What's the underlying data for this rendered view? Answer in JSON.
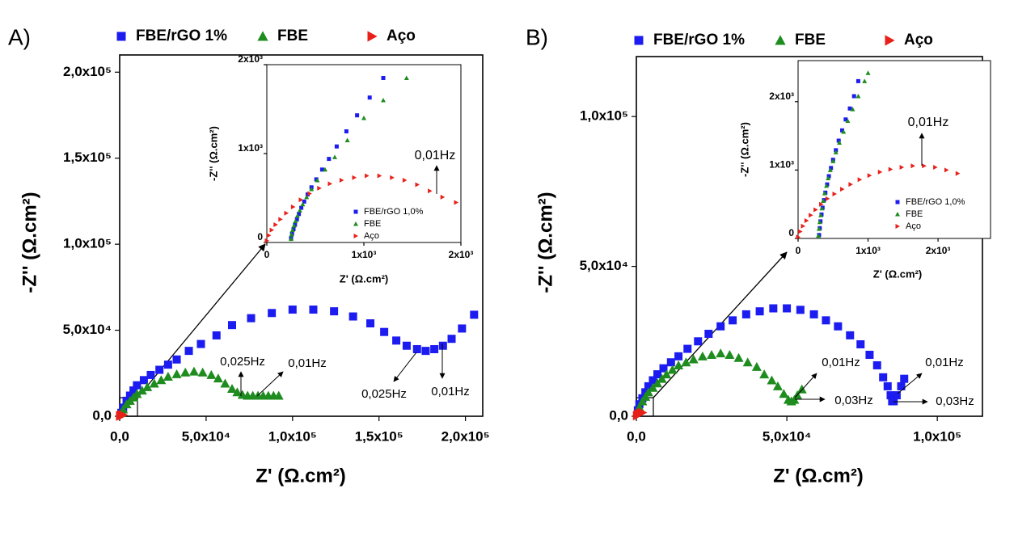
{
  "chart_data": [
    {
      "type": "scatter",
      "panel_label": "A)",
      "xlabel": "Z' (Ω.cm²)",
      "ylabel": "-Z'' (Ω.cm²)",
      "xlim": [
        0,
        210000
      ],
      "ylim": [
        0,
        210000
      ],
      "xticks": [
        {
          "value": 0,
          "label": "0,0"
        },
        {
          "value": 50000,
          "label": "5,0x10⁴"
        },
        {
          "value": 100000,
          "label": "1,0x10⁵"
        },
        {
          "value": 150000,
          "label": "1,5x10⁵"
        },
        {
          "value": 200000,
          "label": "2,0x10⁵"
        }
      ],
      "yticks": [
        {
          "value": 0,
          "label": "0,0"
        },
        {
          "value": 50000,
          "label": "5,0x10⁴"
        },
        {
          "value": 100000,
          "label": "1,0x10⁵"
        },
        {
          "value": 150000,
          "label": "1,5x10⁵"
        },
        {
          "value": 200000,
          "label": "2,0x10⁵"
        }
      ],
      "legend": "top",
      "annotations": [
        "0,025Hz",
        "0,01Hz",
        "0,025Hz",
        "0,01Hz"
      ],
      "series": [
        {
          "name": "FBE/rGO 1%",
          "color": "#1c1cf0",
          "marker": "square",
          "x": [
            1000,
            2000,
            4000,
            6000,
            8000,
            10000,
            14000,
            18000,
            23000,
            28000,
            33000,
            40000,
            47000,
            56000,
            65000,
            76000,
            88000,
            100000,
            112000,
            124000,
            135000,
            145000,
            153000,
            160000,
            166000,
            172000,
            177000,
            182000,
            187000,
            192000,
            198000,
            205000
          ],
          "values": [
            2000,
            5000,
            9000,
            12000,
            15000,
            18000,
            21000,
            24000,
            27000,
            30000,
            33000,
            38000,
            42000,
            47000,
            53000,
            57000,
            60000,
            62000,
            62000,
            61000,
            58000,
            54000,
            49000,
            44000,
            41000,
            39000,
            38000,
            39000,
            41000,
            45000,
            51000,
            59000
          ]
        },
        {
          "name": "FBE",
          "color": "#1e8c1e",
          "marker": "triangle-up",
          "x": [
            1000,
            2000,
            4000,
            6000,
            8000,
            10000,
            13000,
            16000,
            20000,
            24000,
            28000,
            33000,
            38000,
            43000,
            48000,
            53000,
            57000,
            61000,
            65000,
            68000,
            71000,
            74000,
            77000,
            80000,
            83000,
            86000,
            89000,
            92000
          ],
          "values": [
            2000,
            4000,
            7000,
            9000,
            11000,
            13000,
            15000,
            17000,
            19000,
            21000,
            23000,
            24500,
            25500,
            26000,
            25500,
            24000,
            22000,
            19000,
            16000,
            14000,
            12500,
            12000,
            12000,
            12000,
            12000,
            12000,
            12000,
            12000
          ]
        },
        {
          "name": "Aço",
          "color": "#e8201a",
          "marker": "triangle-right",
          "x": [
            200,
            500,
            1000,
            1500,
            2000
          ],
          "values": [
            100,
            300,
            500,
            600,
            700
          ]
        }
      ]
    },
    {
      "type": "scatter",
      "xlabel": "Z' (Ω.cm²)",
      "ylabel": "-Z'' (Ω.cm²)",
      "xlim": [
        0,
        2000
      ],
      "ylim": [
        0,
        2000
      ],
      "xticks": [
        0,
        {
          "value": 1000,
          "label": "1x10³"
        },
        {
          "value": 2000,
          "label": "2x10³"
        }
      ],
      "yticks": [
        0,
        {
          "value": 1000,
          "label": "1x10³"
        },
        {
          "value": 2000,
          "label": "2x10³"
        }
      ],
      "legend": "lower right",
      "annotations": [
        "0,01Hz"
      ],
      "series": [
        {
          "name": "FBE/rGO 1,0%",
          "color": "#1c1cf0",
          "marker": "square",
          "x": [
            250,
            260,
            275,
            290,
            310,
            330,
            355,
            385,
            420,
            460,
            510,
            570,
            640,
            720,
            820,
            930,
            1060,
            1200
          ],
          "values": [
            50,
            100,
            150,
            200,
            260,
            320,
            390,
            460,
            540,
            620,
            710,
            820,
            940,
            1080,
            1250,
            1430,
            1630,
            1850
          ]
        },
        {
          "name": "FBE",
          "color": "#1e8c1e",
          "marker": "triangle-up",
          "x": [
            250,
            255,
            265,
            280,
            295,
            315,
            340,
            370,
            410,
            460,
            520,
            600,
            700,
            830,
            1000,
            1200,
            1440
          ],
          "values": [
            40,
            90,
            140,
            190,
            240,
            300,
            360,
            430,
            510,
            600,
            700,
            820,
            960,
            1150,
            1400,
            1600,
            1850
          ]
        },
        {
          "name": "Aço",
          "color": "#e8201a",
          "marker": "triangle-right",
          "x": [
            0,
            20,
            50,
            90,
            140,
            200,
            270,
            350,
            440,
            540,
            650,
            770,
            900,
            1030,
            1160,
            1290,
            1420,
            1550,
            1680,
            1810,
            1950
          ],
          "values": [
            20,
            80,
            140,
            200,
            260,
            330,
            400,
            480,
            550,
            610,
            660,
            700,
            730,
            750,
            750,
            730,
            700,
            650,
            580,
            510,
            450
          ]
        }
      ]
    },
    {
      "type": "scatter",
      "panel_label": "B)",
      "xlabel": "Z' (Ω.cm²)",
      "ylabel": "-Z'' (Ω.cm²)",
      "xlim": [
        0,
        115000
      ],
      "ylim": [
        0,
        120000
      ],
      "xticks": [
        {
          "value": 0,
          "label": "0,0"
        },
        {
          "value": 50000,
          "label": "5,0x10⁴"
        },
        {
          "value": 100000,
          "label": "1,0x10⁵"
        }
      ],
      "yticks": [
        {
          "value": 0,
          "label": "0,0"
        },
        {
          "value": 50000,
          "label": "5,0x10⁴"
        },
        {
          "value": 100000,
          "label": "1,0x10⁵"
        }
      ],
      "legend": "top",
      "annotations": [
        "0,01Hz",
        "0,03Hz",
        "0,01Hz",
        "0,03Hz"
      ],
      "series": [
        {
          "name": "FBE/rGO 1%",
          "color": "#1c1cf0",
          "marker": "square",
          "x": [
            500,
            1000,
            2000,
            3000,
            4000,
            5500,
            7000,
            9000,
            11500,
            14000,
            17000,
            20500,
            24000,
            28000,
            32000,
            36500,
            41000,
            45500,
            50000,
            54500,
            59000,
            63000,
            67000,
            71000,
            74500,
            77500,
            80000,
            82000,
            83500,
            84500,
            85000,
            85500,
            86500,
            88000,
            89000
          ],
          "values": [
            2000,
            4000,
            6000,
            8000,
            10000,
            12000,
            14000,
            16000,
            18000,
            20000,
            22500,
            25000,
            27500,
            30000,
            32000,
            34000,
            35000,
            36000,
            36000,
            35500,
            34000,
            32000,
            30000,
            27000,
            24000,
            20500,
            17000,
            13000,
            10000,
            7000,
            5000,
            5000,
            7000,
            10000,
            12500
          ]
        },
        {
          "name": "FBE",
          "color": "#1e8c1e",
          "marker": "triangle-up",
          "x": [
            500,
            1000,
            2000,
            3000,
            4000,
            5500,
            7000,
            8500,
            10000,
            12000,
            14000,
            16500,
            19000,
            22000,
            25000,
            28000,
            31000,
            34000,
            37000,
            40000,
            42500,
            45000,
            47000,
            49000,
            50500,
            51500,
            52500,
            53500,
            55000
          ],
          "values": [
            1500,
            3000,
            5000,
            6500,
            8000,
            9500,
            11000,
            12500,
            14000,
            15500,
            17000,
            18000,
            19000,
            20000,
            20500,
            21000,
            20500,
            19500,
            18000,
            16500,
            14000,
            12000,
            10000,
            7500,
            5500,
            5000,
            5500,
            7000,
            9000
          ]
        },
        {
          "name": "Aço",
          "color": "#e8201a",
          "marker": "triangle-right",
          "x": [
            200,
            500,
            1000,
            1500,
            2000
          ],
          "values": [
            200,
            500,
            800,
            1000,
            1200
          ]
        }
      ]
    },
    {
      "type": "scatter",
      "xlabel": "Z' (Ω.cm²)",
      "ylabel": "-Z'' (Ω.cm²)",
      "xlim": [
        0,
        2750
      ],
      "ylim": [
        0,
        2600
      ],
      "xticks": [
        0,
        {
          "value": 1000,
          "label": "1x10³"
        },
        {
          "value": 2000,
          "label": "2x10³"
        }
      ],
      "yticks": [
        0,
        {
          "value": 1000,
          "label": "1x10³"
        },
        {
          "value": 2000,
          "label": "2x10³"
        }
      ],
      "legend": "lower right",
      "annotations": [
        "0,01Hz"
      ],
      "series": [
        {
          "name": "FBE/rGO 1,0%",
          "color": "#1c1cf0",
          "marker": "square",
          "x": [
            300,
            310,
            320,
            335,
            350,
            370,
            390,
            415,
            440,
            470,
            500,
            540,
            580,
            630,
            680,
            740,
            800,
            860
          ],
          "values": [
            50,
            150,
            250,
            350,
            450,
            560,
            670,
            790,
            910,
            1030,
            1150,
            1290,
            1430,
            1580,
            1740,
            1900,
            2080,
            2300
          ]
        },
        {
          "name": "FBE",
          "color": "#1e8c1e",
          "marker": "triangle-up",
          "x": [
            290,
            300,
            310,
            325,
            340,
            360,
            380,
            405,
            430,
            460,
            500,
            540,
            590,
            650,
            710,
            780,
            860,
            950,
            1000
          ],
          "values": [
            40,
            140,
            240,
            340,
            440,
            550,
            660,
            770,
            880,
            1000,
            1130,
            1260,
            1400,
            1560,
            1720,
            1890,
            2080,
            2300,
            2420
          ]
        },
        {
          "name": "Aço",
          "color": "#e8201a",
          "marker": "triangle-right",
          "x": [
            0,
            30,
            70,
            120,
            180,
            250,
            330,
            420,
            520,
            630,
            750,
            880,
            1020,
            1170,
            1320,
            1480,
            1640,
            1800,
            1960,
            2120,
            2280
          ],
          "values": [
            20,
            100,
            180,
            260,
            340,
            420,
            500,
            580,
            650,
            720,
            790,
            860,
            920,
            970,
            1010,
            1040,
            1060,
            1060,
            1040,
            1000,
            950
          ]
        }
      ]
    }
  ]
}
